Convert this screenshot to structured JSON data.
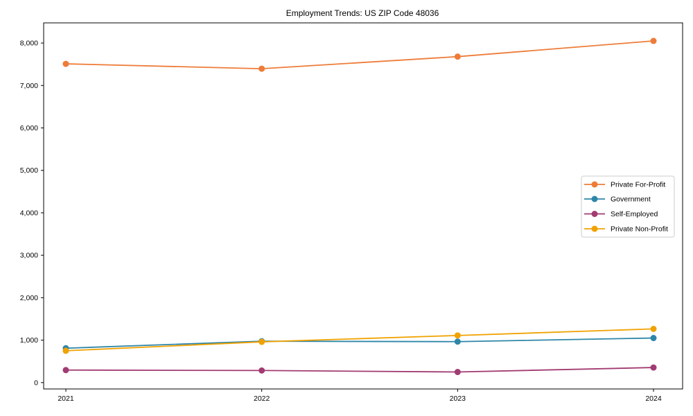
{
  "chart_data": {
    "type": "line",
    "title": "Employment Trends: US ZIP Code 48036",
    "xlabel": "",
    "ylabel": "",
    "x_categories": [
      "2021",
      "2022",
      "2023",
      "2024"
    ],
    "y_ticks": [
      0,
      1000,
      2000,
      3000,
      4000,
      5000,
      6000,
      7000,
      8000
    ],
    "y_tick_labels": [
      "0",
      "1,000",
      "2,000",
      "3,000",
      "4,000",
      "5,000",
      "6,000",
      "7,000",
      "8,000"
    ],
    "ylim": [
      -150,
      8475
    ],
    "grid": false,
    "legend_position": "center-right",
    "series": [
      {
        "name": "Private For-Profit",
        "color": "#ED7C39",
        "values": [
          7510,
          7395,
          7680,
          8050
        ]
      },
      {
        "name": "Government",
        "color": "#2E86A8",
        "values": [
          810,
          975,
          965,
          1050
        ]
      },
      {
        "name": "Self-Employed",
        "color": "#A23B72",
        "values": [
          295,
          285,
          250,
          355
        ]
      },
      {
        "name": "Private Non-Profit",
        "color": "#F0A202",
        "values": [
          750,
          960,
          1110,
          1265
        ]
      }
    ]
  }
}
